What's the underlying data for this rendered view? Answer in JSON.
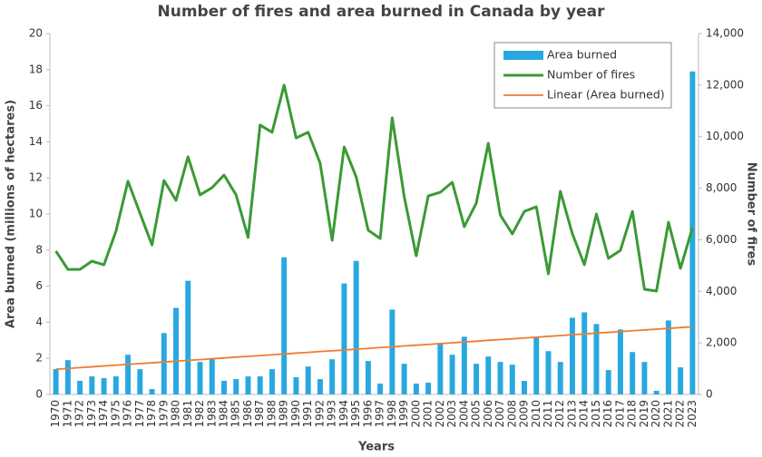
{
  "chart_data": {
    "type": "bar",
    "title": "Number of fires and area burned in Canada by year",
    "x_label": "Years",
    "y_label": "Area burned (millions of hectares)",
    "y2_label": "Number of fires",
    "categories": [
      "1970",
      "1971",
      "1972",
      "1973",
      "1974",
      "1975",
      "1976",
      "1977",
      "1978",
      "1979",
      "1980",
      "1981",
      "1982",
      "1983",
      "1984",
      "1985",
      "1986",
      "1987",
      "1988",
      "1989",
      "1990",
      "1991",
      "1992",
      "1993",
      "1994",
      "1995",
      "1996",
      "1997",
      "1998",
      "1999",
      "2000",
      "2001",
      "2002",
      "2003",
      "2004",
      "2005",
      "2006",
      "2007",
      "2008",
      "2009",
      "2010",
      "2011",
      "2012",
      "2013",
      "2014",
      "2015",
      "2016",
      "2017",
      "2018",
      "2019",
      "2020",
      "2021",
      "2022",
      "2023"
    ],
    "series": [
      {
        "name": "Area burned",
        "type": "bar",
        "color": "#29a8e0",
        "values": [
          1.4,
          1.9,
          0.75,
          1.0,
          0.9,
          1.0,
          2.2,
          1.4,
          0.3,
          3.4,
          4.8,
          6.3,
          1.8,
          2.0,
          0.75,
          0.85,
          1.0,
          1.0,
          1.4,
          7.6,
          0.95,
          1.55,
          0.85,
          1.95,
          6.15,
          7.4,
          1.85,
          0.6,
          4.7,
          1.7,
          0.6,
          0.65,
          2.8,
          2.2,
          3.2,
          1.7,
          2.1,
          1.8,
          1.65,
          0.75,
          3.2,
          2.4,
          1.8,
          4.25,
          4.55,
          3.9,
          1.35,
          3.6,
          2.35,
          1.8,
          0.2,
          4.1,
          1.5,
          17.9
        ]
      },
      {
        "name": "Number of fires",
        "type": "line",
        "axis": "y2",
        "color": "#3a9a34",
        "values": [
          5560,
          4850,
          4850,
          5170,
          5030,
          6330,
          8270,
          7030,
          5800,
          8300,
          7530,
          9220,
          7740,
          8020,
          8510,
          7740,
          6090,
          10450,
          10170,
          12000,
          9950,
          10170,
          8970,
          5980,
          9600,
          8440,
          6370,
          6050,
          10730,
          7670,
          5380,
          7700,
          7840,
          8230,
          6510,
          7420,
          9740,
          6960,
          6230,
          7100,
          7280,
          4680,
          7880,
          6230,
          5030,
          7000,
          5280,
          5590,
          7100,
          4080,
          4010,
          6680,
          4890,
          6470
        ]
      },
      {
        "name": "Linear (Area burned)",
        "type": "line",
        "color": "#ed7d31",
        "values": [
          1.4,
          1.44,
          1.49,
          1.53,
          1.58,
          1.62,
          1.67,
          1.71,
          1.75,
          1.8,
          1.84,
          1.89,
          1.93,
          1.98,
          2.02,
          2.07,
          2.11,
          2.15,
          2.2,
          2.24,
          2.29,
          2.33,
          2.38,
          2.42,
          2.46,
          2.51,
          2.55,
          2.6,
          2.64,
          2.69,
          2.73,
          2.77,
          2.82,
          2.86,
          2.91,
          2.95,
          3.0,
          3.04,
          3.08,
          3.13,
          3.17,
          3.22,
          3.26,
          3.31,
          3.35,
          3.4,
          3.44,
          3.48,
          3.53,
          3.57,
          3.62,
          3.66,
          3.71,
          3.75
        ]
      }
    ],
    "ylim": [
      0,
      20
    ],
    "yticks": [
      0,
      2,
      4,
      6,
      8,
      10,
      12,
      14,
      16,
      18,
      20
    ],
    "y2lim": [
      0,
      14000
    ],
    "y2ticks": [
      0,
      {
        "value": 2000,
        "label": "2,000"
      },
      {
        "value": 4000,
        "label": "4,000"
      },
      {
        "value": 6000,
        "label": "6,000"
      },
      {
        "value": 8000,
        "label": "8,000"
      },
      {
        "value": 10000,
        "label": "10,000"
      },
      {
        "value": 12000,
        "label": "12,000"
      },
      {
        "value": 14000,
        "label": "14,000"
      }
    ],
    "grid": false,
    "legend": "top-right"
  }
}
